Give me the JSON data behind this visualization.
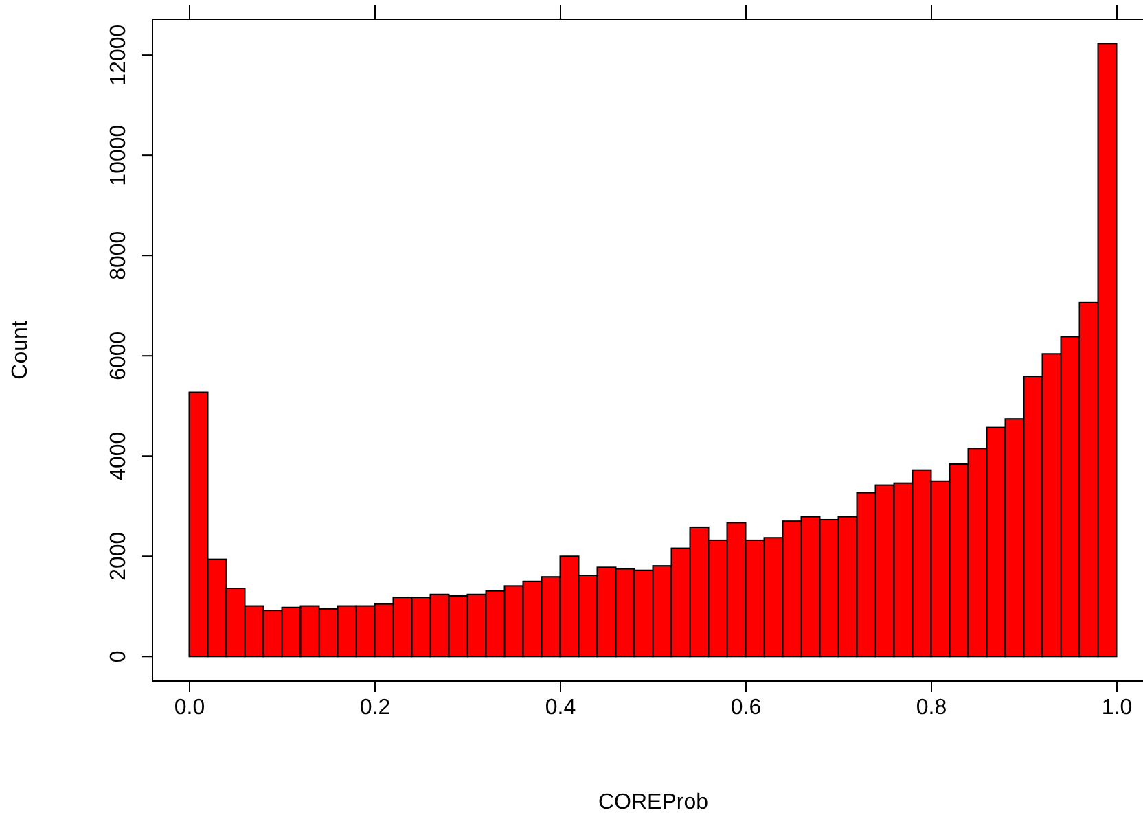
{
  "chart_data": {
    "type": "histogram",
    "xlabel": "COREProb",
    "ylabel": "Count",
    "color": "#ff0000",
    "bins": [
      0,
      0.02,
      0.04,
      0.06,
      0.08,
      0.1,
      0.12,
      0.14,
      0.16,
      0.18,
      0.2,
      0.22,
      0.24,
      0.26,
      0.28,
      0.3,
      0.32,
      0.34,
      0.36,
      0.38,
      0.4,
      0.42,
      0.44,
      0.46,
      0.48,
      0.5,
      0.52,
      0.54,
      0.56,
      0.58,
      0.6,
      0.62,
      0.64,
      0.66,
      0.68,
      0.7,
      0.72,
      0.74,
      0.76,
      0.78,
      0.8,
      0.82,
      0.84,
      0.86,
      0.88,
      0.9,
      0.92,
      0.94,
      0.96,
      0.98,
      1
    ],
    "values": [
      5270,
      1940,
      1360,
      1010,
      920,
      980,
      1010,
      950,
      1010,
      1010,
      1050,
      1180,
      1180,
      1240,
      1210,
      1240,
      1310,
      1410,
      1500,
      1590,
      2000,
      1620,
      1780,
      1750,
      1720,
      1810,
      2160,
      2580,
      2320,
      2670,
      2320,
      2370,
      2700,
      2790,
      2730,
      2790,
      3270,
      3420,
      3460,
      3720,
      3500,
      3840,
      4150,
      4570,
      4740,
      5590,
      6040,
      6380,
      7060,
      12230
    ],
    "xlim": [
      -0.04,
      1.04
    ],
    "xticks": [
      {
        "value": 0,
        "label": "0.0"
      },
      0.2,
      0.4,
      0.6,
      0.8,
      {
        "value": 1,
        "label": "1.0"
      }
    ],
    "ylim": [
      -489,
      12714
    ],
    "yticks": [
      0,
      2000,
      4000,
      6000,
      8000,
      10000,
      12000
    ]
  }
}
